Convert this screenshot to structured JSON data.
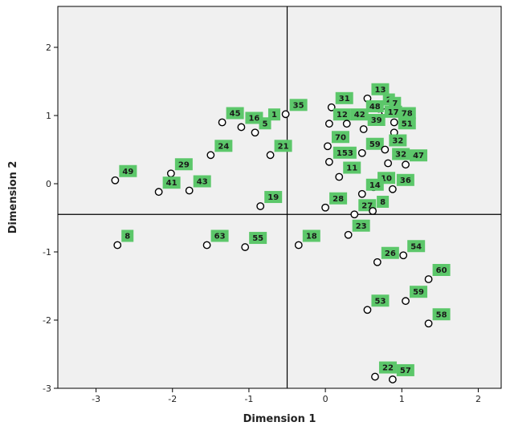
{
  "chart_data": {
    "type": "scatter",
    "xlabel": "Dimension 1",
    "ylabel": "Dimension 2",
    "xlim": [
      -3.5,
      2.3
    ],
    "ylim": [
      -3.0,
      2.6
    ],
    "x_ticks": [
      -3,
      -2,
      -1,
      0,
      1,
      2
    ],
    "x_tick_labels": [
      "-3",
      "-2",
      "-1",
      "0",
      "1",
      "2"
    ],
    "y_ticks": [
      -3,
      -2,
      -1,
      0,
      1,
      2
    ],
    "y_tick_labels": [
      "-3",
      "-2",
      "-1",
      "0",
      "1",
      "2"
    ],
    "reference_lines": {
      "x": -0.5,
      "y": -0.45
    },
    "grid": false,
    "colors": {
      "plot_bg": "#f0f0f0",
      "label_bg": "#5cc76a",
      "marker_fill": "#ffffff",
      "marker_stroke": "#000000"
    },
    "points": [
      {
        "label": "13",
        "x": 0.55,
        "y": 1.25
      },
      {
        "label": "31",
        "x": 0.08,
        "y": 1.12
      },
      {
        "label": "2",
        "x": 0.7,
        "y": 1.1
      },
      {
        "label": "7",
        "x": 0.78,
        "y": 1.05
      },
      {
        "label": "48",
        "x": 0.48,
        "y": 1.0
      },
      {
        "label": "17",
        "x": 0.72,
        "y": 0.92
      },
      {
        "label": "78",
        "x": 0.9,
        "y": 0.9
      },
      {
        "label": "12",
        "x": 0.05,
        "y": 0.88
      },
      {
        "label": "42",
        "x": 0.28,
        "y": 0.88
      },
      {
        "label": "39",
        "x": 0.5,
        "y": 0.8
      },
      {
        "label": "51",
        "x": 0.9,
        "y": 0.75
      },
      {
        "label": "70",
        "x": 0.03,
        "y": 0.55
      },
      {
        "label": "59",
        "x": 0.48,
        "y": 0.45
      },
      {
        "label": "32",
        "x": 0.78,
        "y": 0.5
      },
      {
        "label": "153",
        "x": 0.05,
        "y": 0.32
      },
      {
        "label": "32",
        "x": 0.82,
        "y": 0.3
      },
      {
        "label": "47",
        "x": 1.05,
        "y": 0.28
      },
      {
        "label": "11",
        "x": 0.18,
        "y": 0.1
      },
      {
        "label": "10",
        "x": 0.63,
        "y": -0.05
      },
      {
        "label": "36",
        "x": 0.88,
        "y": -0.08
      },
      {
        "label": "14",
        "x": 0.48,
        "y": -0.15
      },
      {
        "label": "28",
        "x": 0.0,
        "y": -0.35
      },
      {
        "label": "27",
        "x": 0.38,
        "y": -0.45
      },
      {
        "label": "8",
        "x": 0.62,
        "y": -0.4
      },
      {
        "label": "23",
        "x": 0.3,
        "y": -0.75
      },
      {
        "label": "18",
        "x": -0.35,
        "y": -0.9
      },
      {
        "label": "26",
        "x": 0.68,
        "y": -1.15
      },
      {
        "label": "54",
        "x": 1.02,
        "y": -1.05
      },
      {
        "label": "60",
        "x": 1.35,
        "y": -1.4
      },
      {
        "label": "53",
        "x": 0.55,
        "y": -1.85
      },
      {
        "label": "59",
        "x": 1.05,
        "y": -1.72
      },
      {
        "label": "58",
        "x": 1.35,
        "y": -2.05
      },
      {
        "label": "22",
        "x": 0.65,
        "y": -2.83
      },
      {
        "label": "57",
        "x": 0.88,
        "y": -2.87
      },
      {
        "label": "35",
        "x": -0.52,
        "y": 1.02
      },
      {
        "label": "45",
        "x": -1.35,
        "y": 0.9
      },
      {
        "label": "16",
        "x": -1.1,
        "y": 0.83
      },
      {
        "label": "1",
        "x": -0.8,
        "y": 0.88
      },
      {
        "label": "5",
        "x": -0.92,
        "y": 0.75
      },
      {
        "label": "21",
        "x": -0.72,
        "y": 0.42
      },
      {
        "label": "24",
        "x": -1.5,
        "y": 0.42
      },
      {
        "label": "29",
        "x": -2.02,
        "y": 0.15
      },
      {
        "label": "49",
        "x": -2.75,
        "y": 0.05
      },
      {
        "label": "41",
        "x": -2.18,
        "y": -0.12
      },
      {
        "label": "43",
        "x": -1.78,
        "y": -0.1
      },
      {
        "label": "19",
        "x": -0.85,
        "y": -0.33
      },
      {
        "label": "8",
        "x": -2.72,
        "y": -0.9
      },
      {
        "label": "63",
        "x": -1.55,
        "y": -0.9
      },
      {
        "label": "55",
        "x": -1.05,
        "y": -0.93
      }
    ]
  }
}
